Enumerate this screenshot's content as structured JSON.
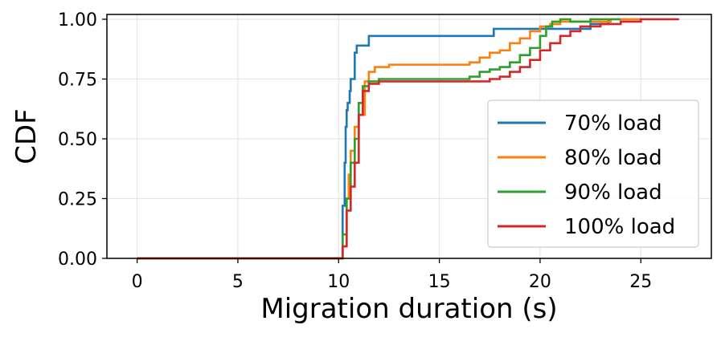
{
  "chart_data": {
    "type": "line",
    "subtype": "step-cdf",
    "title": "",
    "xlabel": "Migration duration (s)",
    "ylabel": "CDF",
    "xlim": [
      -1.5,
      28.5
    ],
    "ylim": [
      0,
      1.0
    ],
    "xticks": [
      0,
      5,
      10,
      15,
      20,
      25
    ],
    "xtick_labels": [
      "0",
      "5",
      "10",
      "15",
      "20",
      "25"
    ],
    "yticks": [
      0,
      0.25,
      0.5,
      0.75,
      1.0
    ],
    "ytick_labels": [
      "0.00",
      "0.25",
      "0.50",
      "0.75",
      "1.00"
    ],
    "grid": true,
    "legend_position": "center-right",
    "series": [
      {
        "name": "70% load",
        "color": "#1f77b4",
        "x": [
          0,
          10.2,
          10.2,
          10.3,
          10.35,
          10.4,
          10.45,
          10.55,
          10.6,
          10.7,
          10.8,
          10.9,
          11.0,
          11.2,
          11.5,
          12.0,
          14.0,
          17.7,
          20.0,
          22.5,
          23.4
        ],
        "y": [
          0,
          0,
          0.22,
          0.4,
          0.55,
          0.62,
          0.65,
          0.7,
          0.75,
          0.75,
          0.86,
          0.89,
          0.89,
          0.89,
          0.93,
          0.93,
          0.93,
          0.96,
          0.96,
          0.98,
          1.0
        ]
      },
      {
        "name": "80% load",
        "color": "#ff7f0e",
        "x": [
          0,
          10.2,
          10.2,
          10.4,
          10.5,
          10.6,
          10.8,
          11.0,
          11.3,
          11.5,
          11.8,
          12.5,
          15.0,
          16.5,
          17.0,
          17.5,
          18.0,
          18.5,
          19.0,
          19.5,
          20.0,
          20.5,
          21.0,
          22.0,
          23.5,
          25.0
        ],
        "y": [
          0,
          0,
          0.05,
          0.25,
          0.35,
          0.45,
          0.55,
          0.6,
          0.74,
          0.78,
          0.8,
          0.81,
          0.81,
          0.82,
          0.84,
          0.86,
          0.87,
          0.9,
          0.92,
          0.95,
          0.97,
          0.98,
          0.99,
          0.99,
          1.0,
          1.0
        ]
      },
      {
        "name": "90% load",
        "color": "#2ca02c",
        "x": [
          0,
          10.2,
          10.2,
          10.4,
          10.6,
          10.8,
          11.0,
          11.2,
          11.5,
          12.0,
          15.0,
          16.5,
          17.0,
          17.5,
          18.0,
          18.5,
          19.0,
          19.5,
          20.0,
          20.3,
          20.6,
          21.0,
          21.5,
          22.5,
          24.0
        ],
        "y": [
          0,
          0,
          0.1,
          0.25,
          0.4,
          0.5,
          0.65,
          0.72,
          0.74,
          0.75,
          0.75,
          0.76,
          0.78,
          0.79,
          0.8,
          0.82,
          0.85,
          0.88,
          0.93,
          0.97,
          0.99,
          1.0,
          0.99,
          1.0,
          1.0
        ]
      },
      {
        "name": "100% load",
        "color": "#d62728",
        "x": [
          0,
          10.2,
          10.2,
          10.4,
          10.6,
          10.8,
          11.0,
          11.2,
          11.5,
          12.0,
          16.0,
          17.5,
          18.0,
          18.5,
          19.0,
          19.5,
          20.0,
          20.5,
          21.0,
          21.5,
          22.0,
          23.0,
          24.0,
          25.0,
          26.9
        ],
        "y": [
          0,
          0,
          0.05,
          0.2,
          0.3,
          0.4,
          0.6,
          0.7,
          0.73,
          0.74,
          0.74,
          0.75,
          0.76,
          0.78,
          0.8,
          0.83,
          0.87,
          0.9,
          0.93,
          0.95,
          0.97,
          0.98,
          0.99,
          1.0,
          1.0
        ]
      }
    ]
  },
  "colors": {
    "grid": "#e6e6e6",
    "axis": "#000000",
    "legend_border": "#cccccc"
  }
}
